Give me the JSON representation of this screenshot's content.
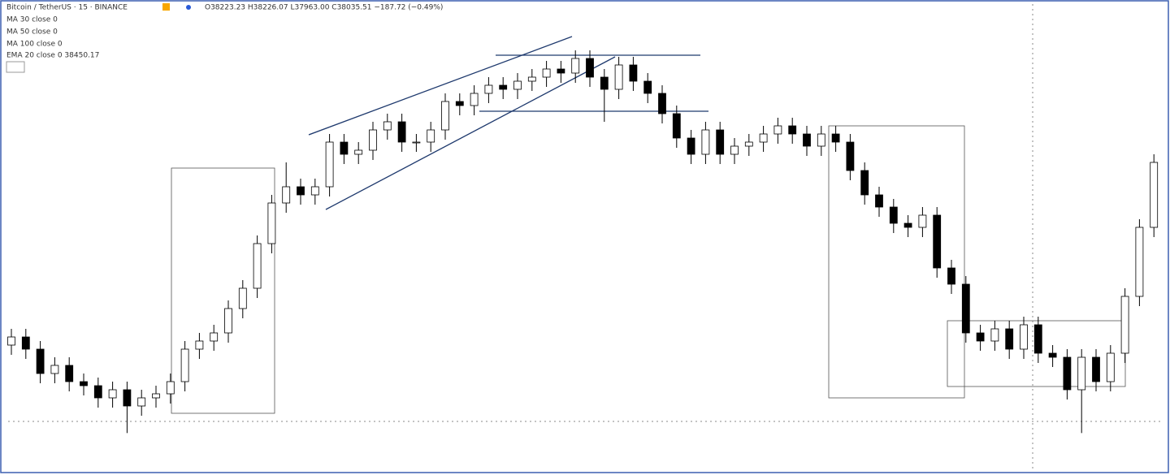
{
  "header": {
    "symbol": "Bitcoin / TetherUS · 15 · BINANCE",
    "ohlc": "O38223.23 H38226.07 L37963.00 C38035.51 −187.72 (−0.49%)"
  },
  "indicators": [
    "MA 30 close 0",
    "MA 50 close 0",
    "MA 100 close 0",
    "EMA 20 close 0  38450.17"
  ],
  "chart_data": {
    "type": "candlestick",
    "open": [
      37950,
      38010,
      37920,
      37740,
      37800,
      37680,
      37650,
      37560,
      37620,
      37500,
      37560,
      37590,
      37680,
      37920,
      37980,
      38040,
      38220,
      38370,
      38700,
      39000,
      39120,
      39060,
      39120,
      39450,
      39360,
      39390,
      39540,
      39600,
      39450,
      39450,
      39540,
      39750,
      39720,
      39810,
      39870,
      39840,
      39900,
      39930,
      39990,
      39960,
      40068,
      39930,
      39840,
      40020,
      39900,
      39810,
      39660,
      39480,
      39360,
      39540,
      39360,
      39420,
      39450,
      39510,
      39570,
      39510,
      39420,
      39510,
      39450,
      39240,
      39060,
      38970,
      38850,
      38820,
      38910,
      38520,
      38400,
      38040,
      37980,
      38070,
      37920,
      38100,
      37890,
      37860,
      37620,
      37860,
      37680,
      37890,
      38310,
      38820
    ],
    "high": [
      38070,
      38070,
      37980,
      37860,
      37860,
      37740,
      37710,
      37680,
      37680,
      37620,
      37650,
      37740,
      37980,
      38040,
      38100,
      38280,
      38430,
      38760,
      39060,
      39300,
      39180,
      39180,
      39510,
      39510,
      39450,
      39600,
      39660,
      39660,
      39510,
      39600,
      39810,
      39810,
      39870,
      39930,
      39930,
      39960,
      39990,
      40050,
      40050,
      40128,
      40128,
      39990,
      40080,
      40080,
      39960,
      39870,
      39720,
      39540,
      39600,
      39600,
      39480,
      39510,
      39570,
      39630,
      39630,
      39570,
      39570,
      39570,
      39510,
      39300,
      39120,
      39030,
      38910,
      38970,
      38970,
      38580,
      38460,
      38100,
      38130,
      38130,
      38160,
      38160,
      37950,
      37920,
      37920,
      37920,
      37950,
      38370,
      38880,
      39360
    ],
    "low": [
      37878,
      37848,
      37668,
      37668,
      37608,
      37578,
      37488,
      37488,
      37300,
      37428,
      37488,
      37518,
      37608,
      37848,
      37908,
      37968,
      38148,
      38298,
      38628,
      38928,
      38988,
      38988,
      39048,
      39288,
      39288,
      39318,
      39468,
      39378,
      39378,
      39378,
      39468,
      39648,
      39648,
      39738,
      39768,
      39768,
      39828,
      39858,
      39888,
      39888,
      39858,
      39600,
      39768,
      39828,
      39738,
      39588,
      39408,
      39288,
      39288,
      39288,
      39288,
      39348,
      39378,
      39438,
      39438,
      39348,
      39348,
      39378,
      39168,
      38988,
      38898,
      38778,
      38748,
      38748,
      38448,
      38328,
      37968,
      37908,
      37908,
      37848,
      37848,
      37818,
      37788,
      37548,
      37300,
      37608,
      37608,
      37818,
      38238,
      38748
    ],
    "close": [
      38010,
      37920,
      37740,
      37800,
      37680,
      37650,
      37560,
      37620,
      37500,
      37560,
      37590,
      37680,
      37920,
      37980,
      38040,
      38220,
      38370,
      38700,
      39000,
      39120,
      39060,
      39120,
      39450,
      39360,
      39390,
      39540,
      39600,
      39450,
      39450,
      39540,
      39750,
      39720,
      39810,
      39870,
      39840,
      39900,
      39930,
      39990,
      39960,
      40068,
      39930,
      39840,
      40020,
      39900,
      39810,
      39660,
      39480,
      39360,
      39540,
      39360,
      39420,
      39450,
      39510,
      39570,
      39510,
      39420,
      39510,
      39450,
      39240,
      39060,
      38970,
      38850,
      38820,
      38910,
      38520,
      38400,
      38040,
      37980,
      38070,
      37920,
      38100,
      37890,
      37860,
      37620,
      37860,
      37680,
      37890,
      38310,
      38820,
      39300
    ],
    "ylim": [
      36990,
      40500
    ],
    "up_color": "#ffffff",
    "down_color": "#000000"
  }
}
